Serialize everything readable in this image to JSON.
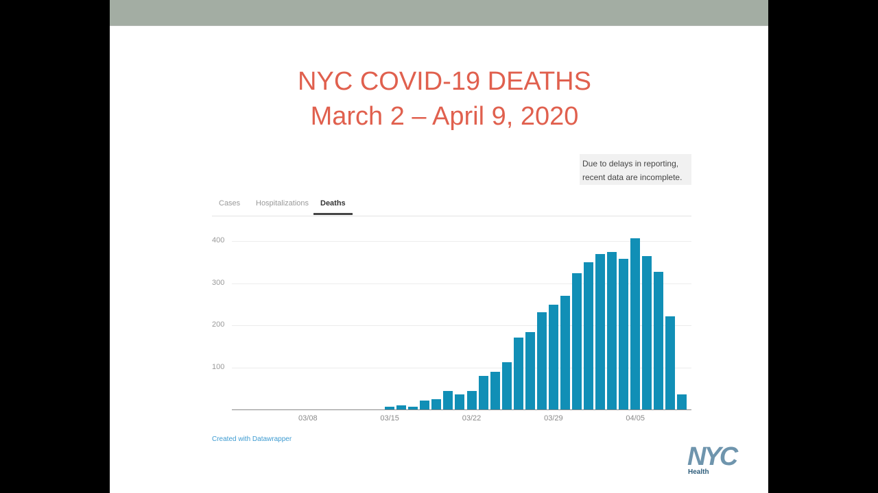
{
  "slide": {
    "title_line1": "NYC COVID-19 DEATHS",
    "title_line2": "March 2 – April 9, 2020",
    "note": "Due to delays in reporting, recent data are incomplete.",
    "note_line1": "Due to delays in reporting,",
    "note_line2": "recent data are incomplete.",
    "tabs": [
      {
        "label": "Cases",
        "active": false
      },
      {
        "label": "Hospitalizations",
        "active": false
      },
      {
        "label": "Deaths",
        "active": true
      }
    ],
    "credit": "Created with Datawrapper",
    "logo": {
      "mark": "NYC",
      "sub": "Health"
    },
    "colors": {
      "title": "#e0604e",
      "bar": "#118fb6",
      "topbar": "#a3ada3",
      "credit": "#3d9bd1"
    }
  },
  "chart_data": {
    "type": "bar",
    "title": "NYC COVID-19 DEATHS March 2 – April 9, 2020",
    "xlabel": "",
    "ylabel": "",
    "ylim": [
      0,
      400
    ],
    "yticks": [
      100,
      200,
      300,
      400
    ],
    "xtick_labels": [
      "03/08",
      "03/15",
      "03/22",
      "03/29",
      "04/05"
    ],
    "grid": true,
    "categories": [
      "03/02",
      "03/03",
      "03/04",
      "03/05",
      "03/06",
      "03/07",
      "03/08",
      "03/09",
      "03/10",
      "03/11",
      "03/12",
      "03/13",
      "03/14",
      "03/15",
      "03/16",
      "03/17",
      "03/18",
      "03/19",
      "03/20",
      "03/21",
      "03/22",
      "03/23",
      "03/24",
      "03/25",
      "03/26",
      "03/27",
      "03/28",
      "03/29",
      "03/30",
      "03/31",
      "04/01",
      "04/02",
      "04/03",
      "04/04",
      "04/05",
      "04/06",
      "04/07",
      "04/08",
      "04/09"
    ],
    "values": [
      0,
      0,
      0,
      0,
      0,
      0,
      0,
      0,
      0,
      0,
      0,
      0,
      0,
      6,
      10,
      6,
      21,
      24,
      44,
      36,
      44,
      80,
      89,
      112,
      171,
      184,
      231,
      249,
      270,
      324,
      350,
      369,
      374,
      358,
      407,
      364,
      327,
      221,
      36
    ],
    "annotation": "Due to delays in reporting, recent data are incomplete."
  }
}
